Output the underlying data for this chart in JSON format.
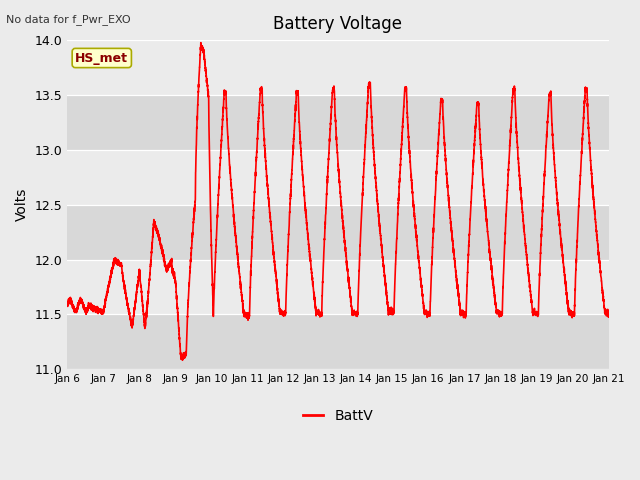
{
  "title": "Battery Voltage",
  "ylabel": "Volts",
  "top_left_text": "No data for f_Pwr_EXO",
  "legend_label": "BattV",
  "legend_color": "#ff0000",
  "line_color": "#ff0000",
  "background_color": "#ebebeb",
  "plot_bg_color": "#ebebeb",
  "ylim": [
    11.0,
    14.0
  ],
  "yticks": [
    11.0,
    11.5,
    12.0,
    12.5,
    13.0,
    13.5,
    14.0
  ],
  "xtick_labels": [
    "Jan 6",
    "Jan 7",
    "Jan 8",
    "Jan 9",
    "Jan 10",
    "Jan 11",
    "Jan 12",
    "Jan 13",
    "Jan 14",
    "Jan 15",
    "Jan 16",
    "Jan 17",
    "Jan 18",
    "Jan 19",
    "Jan 20",
    "Jan 21"
  ],
  "hs_met_label": "HS_met",
  "hs_met_bg": "#ffffcc",
  "hs_met_border": "#aaaa00",
  "band_color": "#d8d8d8",
  "line_width": 1.2
}
